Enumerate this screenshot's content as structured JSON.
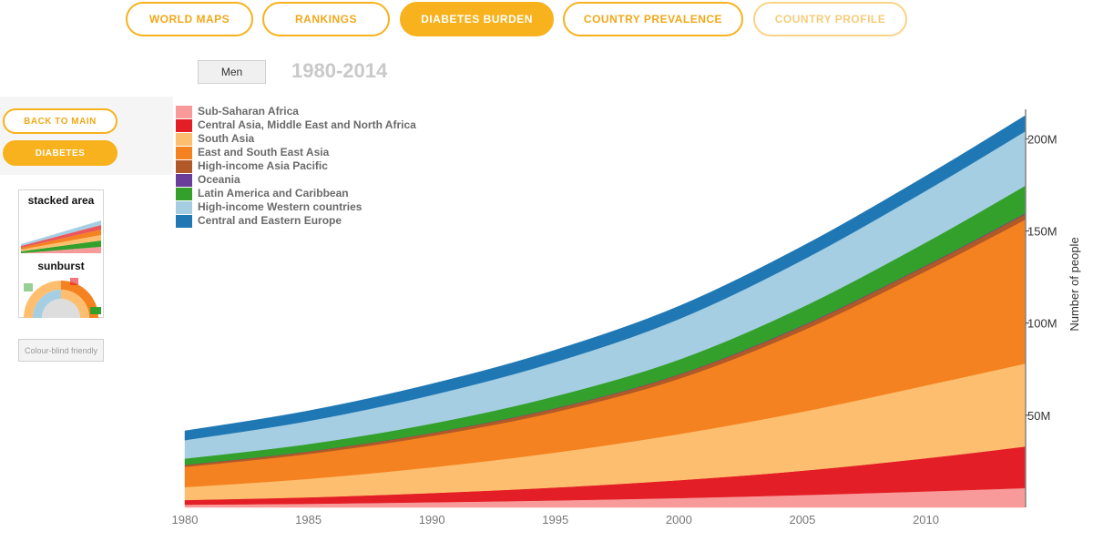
{
  "nav": {
    "items": [
      {
        "label": "WORLD MAPS",
        "state": "normal"
      },
      {
        "label": "RANKINGS",
        "state": "normal"
      },
      {
        "label": "DIABETES BURDEN",
        "state": "active"
      },
      {
        "label": "COUNTRY PREVALENCE",
        "state": "normal"
      },
      {
        "label": "COUNTRY PROFILE",
        "state": "dim"
      }
    ]
  },
  "controls": {
    "sex_button_label": "Men",
    "period_label": "1980-2014",
    "colour_blind_label": "Colour-blind friendly"
  },
  "sidebar": {
    "back_label": "BACK TO MAIN",
    "diabetes_label": "DIABETES",
    "thumb_stacked_label": "stacked area",
    "thumb_sunburst_label": "sunburst"
  },
  "chart_data": {
    "type": "area",
    "stacked": true,
    "x": [
      1980,
      1985,
      1990,
      1995,
      2000,
      2005,
      2010,
      2014
    ],
    "xticks": [
      1980,
      1985,
      1990,
      1995,
      2000,
      2005,
      2010
    ],
    "xlim": [
      1980,
      2014
    ],
    "ylim": [
      0,
      216
    ],
    "yticks": [
      50,
      100,
      150,
      200
    ],
    "ytick_labels": [
      "50M",
      "100M",
      "150M",
      "200M"
    ],
    "ylabel": "Number of people",
    "y_unit": "million",
    "legend_position": "top-left",
    "series": [
      {
        "name": "Sub-Saharan Africa",
        "color": "#f89a99",
        "values": [
          1.5,
          2.0,
          2.8,
          3.8,
          5.1,
          6.7,
          8.7,
          10.5
        ]
      },
      {
        "name": "Central Asia, Middle East and North Africa",
        "color": "#e31e26",
        "values": [
          2.5,
          3.5,
          5.0,
          7.0,
          9.7,
          13.2,
          18.0,
          22.5
        ]
      },
      {
        "name": "South Asia",
        "color": "#fdbf6f",
        "values": [
          7.0,
          10.0,
          14.0,
          19.0,
          25.0,
          32.0,
          39.5,
          45.0
        ]
      },
      {
        "name": "East and South East Asia",
        "color": "#f58220",
        "values": [
          11.0,
          13.5,
          17.0,
          22.0,
          30.0,
          44.0,
          62.0,
          78.0
        ]
      },
      {
        "name": "High-income Asia Pacific",
        "color": "#b15928",
        "values": [
          1.0,
          1.3,
          1.6,
          1.9,
          2.2,
          2.5,
          2.8,
          3.0
        ]
      },
      {
        "name": "Oceania",
        "color": "#6a3d9a",
        "values": [
          0.1,
          0.1,
          0.1,
          0.2,
          0.2,
          0.3,
          0.3,
          0.4
        ]
      },
      {
        "name": "Latin America and Caribbean",
        "color": "#33a02c",
        "values": [
          3.4,
          4.0,
          5.0,
          6.5,
          8.0,
          10.0,
          12.5,
          15.0
        ]
      },
      {
        "name": "High-income Western countries",
        "color": "#a6cee3",
        "values": [
          10.0,
          12.5,
          15.5,
          18.5,
          22.0,
          25.5,
          28.0,
          29.5
        ]
      },
      {
        "name": "Central and Eastern Europe",
        "color": "#1f78b4",
        "values": [
          5.0,
          5.5,
          6.0,
          6.5,
          7.0,
          7.5,
          8.0,
          8.5
        ]
      }
    ]
  }
}
